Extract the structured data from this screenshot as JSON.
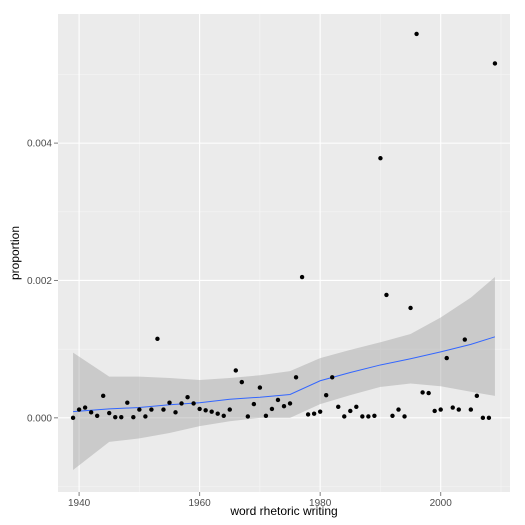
{
  "chart_data": {
    "type": "scatter",
    "xlabel": "word rhetoric writing",
    "ylabel": "proportion",
    "xlim": [
      1936.5,
      2011.5
    ],
    "ylim": [
      -0.00108,
      0.00588
    ],
    "x_ticks": [
      1940,
      1960,
      1980,
      2000
    ],
    "x_tick_labels": [
      "1940",
      "1960",
      "1980",
      "2000"
    ],
    "y_ticks": [
      0.0,
      0.002,
      0.004
    ],
    "y_tick_labels": [
      "0.000",
      "0.002",
      "0.004"
    ],
    "grid": true,
    "colors": {
      "panel_background": "#ebebeb",
      "grid_major": "#ffffff",
      "grid_minor": "#f5f5f5",
      "points": "#000000",
      "smooth_line": "#3366ff",
      "confidence_band": "#999999"
    },
    "series": [
      {
        "type": "scatter",
        "x": [
          1939,
          1940,
          1941,
          1942,
          1943,
          1944,
          1945,
          1946,
          1947,
          1948,
          1949,
          1950,
          1951,
          1952,
          1953,
          1954,
          1955,
          1956,
          1957,
          1958,
          1959,
          1960,
          1961,
          1962,
          1963,
          1964,
          1965,
          1966,
          1967,
          1968,
          1969,
          1970,
          1971,
          1972,
          1973,
          1974,
          1975,
          1976,
          1977,
          1978,
          1979,
          1980,
          1981,
          1982,
          1983,
          1984,
          1985,
          1986,
          1987,
          1988,
          1989,
          1990,
          1991,
          1992,
          1993,
          1994,
          1995,
          1996,
          1997,
          1998,
          1999,
          2000,
          2001,
          2002,
          2003,
          2004,
          2005,
          2006,
          2007,
          2008,
          2009
        ],
        "y": [
          0.0,
          0.00012,
          0.00015,
          8e-05,
          3e-05,
          0.00032,
          7e-05,
          1e-05,
          1e-05,
          0.00022,
          1e-05,
          0.00012,
          2e-05,
          0.00012,
          0.00115,
          0.00012,
          0.00022,
          8e-05,
          0.00021,
          0.0003,
          0.00021,
          0.00013,
          0.00011,
          9e-05,
          6e-05,
          3e-05,
          0.00012,
          0.00069,
          0.00052,
          2e-05,
          0.0002,
          0.00044,
          3e-05,
          0.00013,
          0.00026,
          0.00017,
          0.00021,
          0.00059,
          0.00205,
          5e-05,
          6e-05,
          9e-05,
          0.00033,
          0.00059,
          0.00016,
          2e-05,
          0.0001,
          0.00016,
          2e-05,
          2e-05,
          3e-05,
          0.00378,
          0.00179,
          3e-05,
          0.00012,
          2e-05,
          0.0016,
          0.00559,
          0.00037,
          0.00036,
          0.0001,
          0.00012,
          0.00087,
          0.00015,
          0.00012,
          0.00114,
          0.00012,
          0.00032,
          0.0,
          0.0,
          0.00516
        ]
      },
      {
        "type": "smooth",
        "x": [
          1939,
          1945,
          1950,
          1955,
          1960,
          1965,
          1970,
          1975,
          1980,
          1985,
          1990,
          1995,
          2000,
          2005,
          2009
        ],
        "y": [
          9e-05,
          0.00013,
          0.00015,
          0.00019,
          0.00022,
          0.00027,
          0.0003,
          0.00034,
          0.00054,
          0.00066,
          0.00077,
          0.00086,
          0.00096,
          0.00107,
          0.00118
        ],
        "band_lower": [
          -0.00076,
          -0.00035,
          -0.0003,
          -0.00022,
          -0.00012,
          -5e-05,
          0.0,
          0.0,
          0.0002,
          0.00033,
          0.00045,
          0.0005,
          0.00046,
          0.00038,
          0.00032
        ],
        "band_upper": [
          0.00095,
          0.0006,
          0.0006,
          0.00058,
          0.00055,
          0.00058,
          0.00062,
          0.00068,
          0.00087,
          0.00099,
          0.0011,
          0.00122,
          0.00146,
          0.00175,
          0.00205
        ]
      }
    ]
  }
}
